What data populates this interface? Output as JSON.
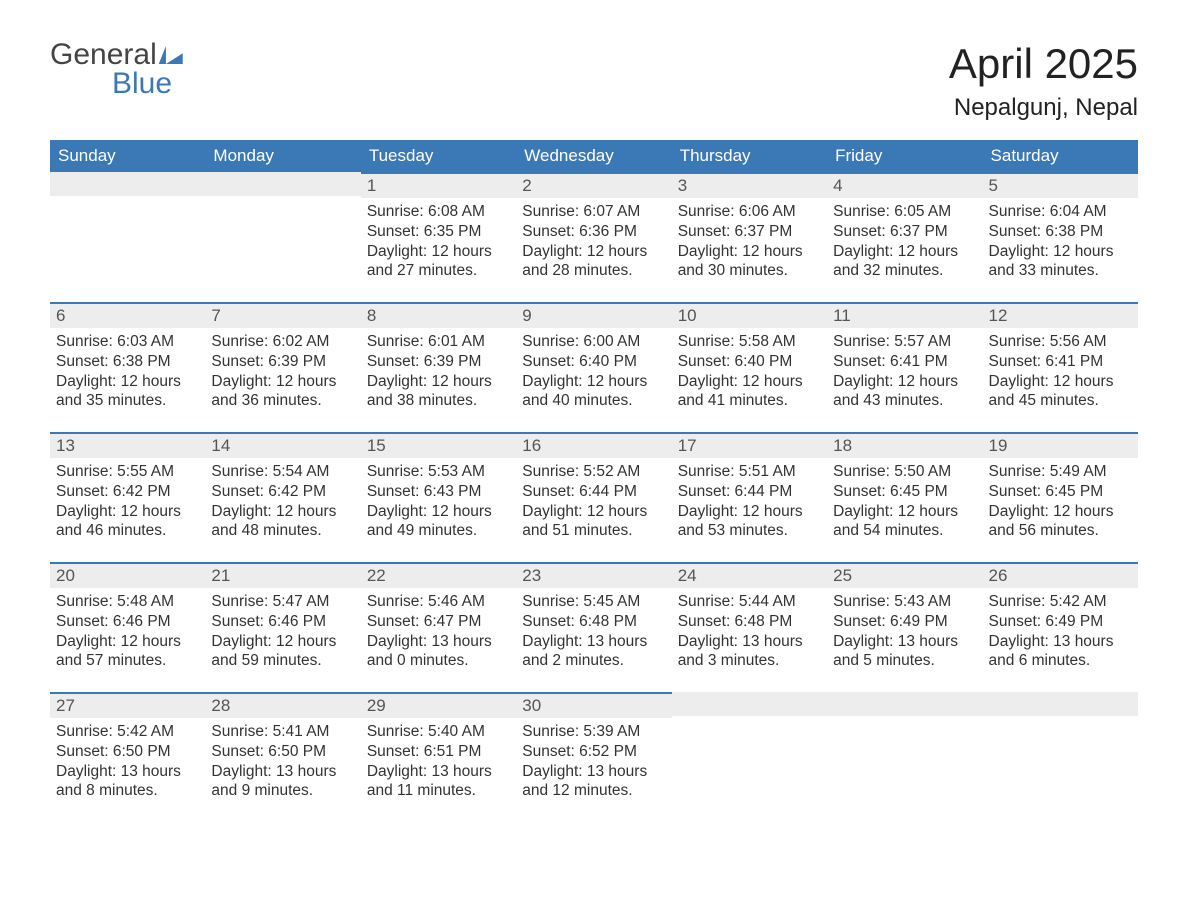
{
  "logo": {
    "word1": "General",
    "word2": "Blue"
  },
  "title": "April 2025",
  "location": "Nepalgunj, Nepal",
  "colors": {
    "header_bg": "#3b79b6",
    "header_text": "#ffffff",
    "daybar_bg": "#ededed",
    "daybar_border": "#3b79b6",
    "body_bg": "#ffffff",
    "body_text": "#333333"
  },
  "weekdays": [
    "Sunday",
    "Monday",
    "Tuesday",
    "Wednesday",
    "Thursday",
    "Friday",
    "Saturday"
  ],
  "weeks": [
    [
      {
        "day": "",
        "sunrise": "",
        "sunset": "",
        "daylight": ""
      },
      {
        "day": "",
        "sunrise": "",
        "sunset": "",
        "daylight": ""
      },
      {
        "day": "1",
        "sunrise": "Sunrise: 6:08 AM",
        "sunset": "Sunset: 6:35 PM",
        "daylight": "Daylight: 12 hours and 27 minutes."
      },
      {
        "day": "2",
        "sunrise": "Sunrise: 6:07 AM",
        "sunset": "Sunset: 6:36 PM",
        "daylight": "Daylight: 12 hours and 28 minutes."
      },
      {
        "day": "3",
        "sunrise": "Sunrise: 6:06 AM",
        "sunset": "Sunset: 6:37 PM",
        "daylight": "Daylight: 12 hours and 30 minutes."
      },
      {
        "day": "4",
        "sunrise": "Sunrise: 6:05 AM",
        "sunset": "Sunset: 6:37 PM",
        "daylight": "Daylight: 12 hours and 32 minutes."
      },
      {
        "day": "5",
        "sunrise": "Sunrise: 6:04 AM",
        "sunset": "Sunset: 6:38 PM",
        "daylight": "Daylight: 12 hours and 33 minutes."
      }
    ],
    [
      {
        "day": "6",
        "sunrise": "Sunrise: 6:03 AM",
        "sunset": "Sunset: 6:38 PM",
        "daylight": "Daylight: 12 hours and 35 minutes."
      },
      {
        "day": "7",
        "sunrise": "Sunrise: 6:02 AM",
        "sunset": "Sunset: 6:39 PM",
        "daylight": "Daylight: 12 hours and 36 minutes."
      },
      {
        "day": "8",
        "sunrise": "Sunrise: 6:01 AM",
        "sunset": "Sunset: 6:39 PM",
        "daylight": "Daylight: 12 hours and 38 minutes."
      },
      {
        "day": "9",
        "sunrise": "Sunrise: 6:00 AM",
        "sunset": "Sunset: 6:40 PM",
        "daylight": "Daylight: 12 hours and 40 minutes."
      },
      {
        "day": "10",
        "sunrise": "Sunrise: 5:58 AM",
        "sunset": "Sunset: 6:40 PM",
        "daylight": "Daylight: 12 hours and 41 minutes."
      },
      {
        "day": "11",
        "sunrise": "Sunrise: 5:57 AM",
        "sunset": "Sunset: 6:41 PM",
        "daylight": "Daylight: 12 hours and 43 minutes."
      },
      {
        "day": "12",
        "sunrise": "Sunrise: 5:56 AM",
        "sunset": "Sunset: 6:41 PM",
        "daylight": "Daylight: 12 hours and 45 minutes."
      }
    ],
    [
      {
        "day": "13",
        "sunrise": "Sunrise: 5:55 AM",
        "sunset": "Sunset: 6:42 PM",
        "daylight": "Daylight: 12 hours and 46 minutes."
      },
      {
        "day": "14",
        "sunrise": "Sunrise: 5:54 AM",
        "sunset": "Sunset: 6:42 PM",
        "daylight": "Daylight: 12 hours and 48 minutes."
      },
      {
        "day": "15",
        "sunrise": "Sunrise: 5:53 AM",
        "sunset": "Sunset: 6:43 PM",
        "daylight": "Daylight: 12 hours and 49 minutes."
      },
      {
        "day": "16",
        "sunrise": "Sunrise: 5:52 AM",
        "sunset": "Sunset: 6:44 PM",
        "daylight": "Daylight: 12 hours and 51 minutes."
      },
      {
        "day": "17",
        "sunrise": "Sunrise: 5:51 AM",
        "sunset": "Sunset: 6:44 PM",
        "daylight": "Daylight: 12 hours and 53 minutes."
      },
      {
        "day": "18",
        "sunrise": "Sunrise: 5:50 AM",
        "sunset": "Sunset: 6:45 PM",
        "daylight": "Daylight: 12 hours and 54 minutes."
      },
      {
        "day": "19",
        "sunrise": "Sunrise: 5:49 AM",
        "sunset": "Sunset: 6:45 PM",
        "daylight": "Daylight: 12 hours and 56 minutes."
      }
    ],
    [
      {
        "day": "20",
        "sunrise": "Sunrise: 5:48 AM",
        "sunset": "Sunset: 6:46 PM",
        "daylight": "Daylight: 12 hours and 57 minutes."
      },
      {
        "day": "21",
        "sunrise": "Sunrise: 5:47 AM",
        "sunset": "Sunset: 6:46 PM",
        "daylight": "Daylight: 12 hours and 59 minutes."
      },
      {
        "day": "22",
        "sunrise": "Sunrise: 5:46 AM",
        "sunset": "Sunset: 6:47 PM",
        "daylight": "Daylight: 13 hours and 0 minutes."
      },
      {
        "day": "23",
        "sunrise": "Sunrise: 5:45 AM",
        "sunset": "Sunset: 6:48 PM",
        "daylight": "Daylight: 13 hours and 2 minutes."
      },
      {
        "day": "24",
        "sunrise": "Sunrise: 5:44 AM",
        "sunset": "Sunset: 6:48 PM",
        "daylight": "Daylight: 13 hours and 3 minutes."
      },
      {
        "day": "25",
        "sunrise": "Sunrise: 5:43 AM",
        "sunset": "Sunset: 6:49 PM",
        "daylight": "Daylight: 13 hours and 5 minutes."
      },
      {
        "day": "26",
        "sunrise": "Sunrise: 5:42 AM",
        "sunset": "Sunset: 6:49 PM",
        "daylight": "Daylight: 13 hours and 6 minutes."
      }
    ],
    [
      {
        "day": "27",
        "sunrise": "Sunrise: 5:42 AM",
        "sunset": "Sunset: 6:50 PM",
        "daylight": "Daylight: 13 hours and 8 minutes."
      },
      {
        "day": "28",
        "sunrise": "Sunrise: 5:41 AM",
        "sunset": "Sunset: 6:50 PM",
        "daylight": "Daylight: 13 hours and 9 minutes."
      },
      {
        "day": "29",
        "sunrise": "Sunrise: 5:40 AM",
        "sunset": "Sunset: 6:51 PM",
        "daylight": "Daylight: 13 hours and 11 minutes."
      },
      {
        "day": "30",
        "sunrise": "Sunrise: 5:39 AM",
        "sunset": "Sunset: 6:52 PM",
        "daylight": "Daylight: 13 hours and 12 minutes."
      },
      {
        "day": "",
        "sunrise": "",
        "sunset": "",
        "daylight": ""
      },
      {
        "day": "",
        "sunrise": "",
        "sunset": "",
        "daylight": ""
      },
      {
        "day": "",
        "sunrise": "",
        "sunset": "",
        "daylight": ""
      }
    ]
  ]
}
